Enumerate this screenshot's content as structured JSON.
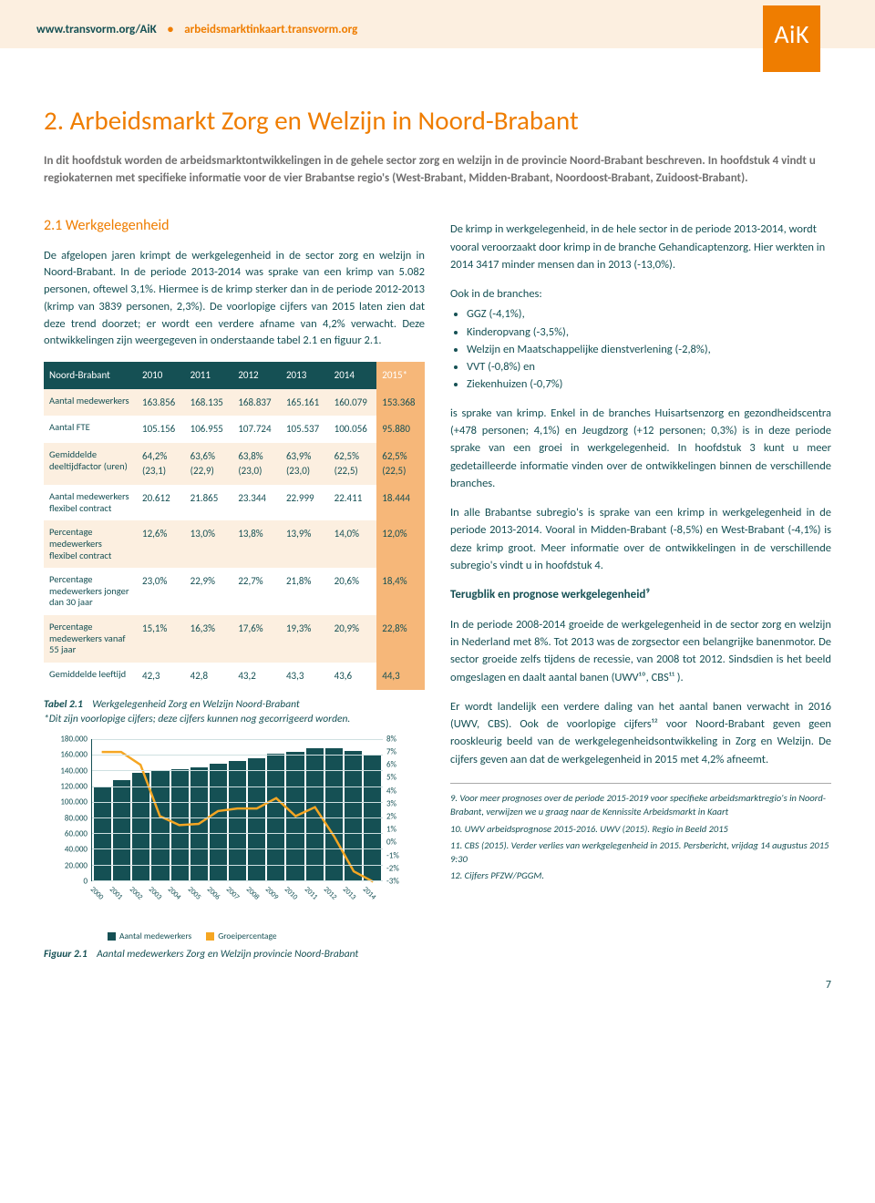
{
  "header": {
    "link1": "www.transvorm.org/AiK",
    "link2": "arbeidsmarktinkaart.transvorm.org",
    "badge": "AiK"
  },
  "title": "2. Arbeidsmarkt Zorg en Welzijn in Noord-Brabant",
  "intro": "In dit hoofdstuk worden de arbeidsmarktontwikkelingen in de gehele sector zorg en welzijn in de provincie Noord-Brabant beschreven. In hoofdstuk 4 vindt u regiokaternen met specifieke informatie voor de vier Brabantse regio's (West-Brabant, Midden-Brabant, Noordoost-Brabant, Zuidoost-Brabant).",
  "left": {
    "sub_h": "2.1  Werkgelegenheid",
    "para": "De afgelopen jaren krimpt de werkgelegenheid in de sector zorg en welzijn in Noord-Brabant. In de periode 2013-2014 was sprake van een krimp van 5.082 personen, oftewel 3,1%. Hiermee is de krimp sterker dan in de periode 2012-2013 (krimp van 3839 personen, 2,3%). De voorlopige cijfers van 2015 laten zien dat deze trend doorzet; er wordt een verdere afname van 4,2% verwacht. Deze ontwikkelingen zijn weergegeven in onderstaande tabel 2.1 en figuur 2.1.",
    "table": {
      "head_label": "Noord-Brabant",
      "years": [
        "2010",
        "2011",
        "2012",
        "2013",
        "2014",
        "2015*"
      ],
      "rows": [
        {
          "label": "Aantal medewerkers",
          "cells": [
            "163.856",
            "168.135",
            "168.837",
            "165.161",
            "160.079",
            "153.368"
          ]
        },
        {
          "label": "Aantal FTE",
          "cells": [
            "105.156",
            "106.955",
            "107.724",
            "105.537",
            "100.056",
            "95.880"
          ]
        },
        {
          "label": "Gemiddelde deeltijdfactor (uren)",
          "cells": [
            "64,2% (23,1)",
            "63,6% (22,9)",
            "63,8% (23,0)",
            "63,9% (23,0)",
            "62,5% (22,5)",
            "62,5% (22,5)"
          ]
        },
        {
          "label": "Aantal medewerkers flexibel contract",
          "cells": [
            "20.612",
            "21.865",
            "23.344",
            "22.999",
            "22.411",
            "18.444"
          ]
        },
        {
          "label": "Percentage medewerkers flexibel contract",
          "cells": [
            "12,6%",
            "13,0%",
            "13,8%",
            "13,9%",
            "14,0%",
            "12,0%"
          ]
        },
        {
          "label": "Percentage medewerkers jonger dan 30 jaar",
          "cells": [
            "23,0%",
            "22,9%",
            "22,7%",
            "21,8%",
            "20,6%",
            "18,4%"
          ]
        },
        {
          "label": "Percentage medewerkers vanaf 55 jaar",
          "cells": [
            "15,1%",
            "16,3%",
            "17,6%",
            "19,3%",
            "20,9%",
            "22,8%"
          ]
        },
        {
          "label": "Gemiddelde leeftijd",
          "cells": [
            "42,3",
            "42,8",
            "43,2",
            "43,3",
            "43,6",
            "44,3"
          ]
        }
      ]
    },
    "tcaption_a": "Tabel 2.1",
    "tcaption_b": "Werkgelegenheid Zorg en Welzijn Noord-Brabant",
    "tcaption_c": "*Dit zijn voorlopige cijfers; deze cijfers kunnen nog gecorrigeerd worden.",
    "chart": {
      "type": "bar+line",
      "categories": [
        "2000",
        "2001",
        "2002",
        "2003",
        "2004",
        "2005",
        "2006",
        "2007",
        "2008",
        "2009",
        "2010",
        "2011",
        "2012",
        "2013",
        "2014"
      ],
      "bar_values": [
        120000,
        128000,
        137000,
        140000,
        142000,
        144000,
        148000,
        152000,
        156000,
        161000,
        163856,
        168135,
        168837,
        165161,
        160079
      ],
      "line_values_pct": [
        7,
        7,
        6,
        2,
        1.3,
        1.4,
        2.4,
        2.6,
        2.6,
        3.4,
        2.0,
        2.7,
        0.4,
        -2.3,
        -3.1
      ],
      "y_left_max": 180000,
      "y_left_step": 20000,
      "y_right_max": 8,
      "y_right_min": -3,
      "y_right_step": 1,
      "bar_color": "#155054",
      "line_color": "#f5a623",
      "grid_color": "#cfe0e1",
      "legend_bar": "Aantal medewerkers",
      "legend_line": "Groeipercentage"
    },
    "fcaption_a": "Figuur 2.1",
    "fcaption_b": "Aantal medewerkers Zorg en Welzijn provincie Noord-Brabant"
  },
  "right": {
    "p1": "De krimp in werkgelegenheid, in de hele sector in de periode 2013-2014, wordt vooral veroorzaakt door krimp in de branche Gehandicaptenzorg. Hier werkten in 2014 3417 minder mensen dan in 2013 (-13,0%).",
    "p2": "Ook in de branches:",
    "bullets": [
      "GGZ (-4,1%),",
      "Kinderopvang (-3,5%),",
      "Welzijn en Maatschappelijke dienstverlening (-2,8%),",
      "VVT (-0,8%) en",
      "Ziekenhuizen (-0,7%)"
    ],
    "p3": "is sprake van krimp. Enkel in de branches Huisartsenzorg en gezondheidscentra (+478 personen; 4,1%) en Jeugdzorg (+12 personen; 0,3%) is in deze periode sprake van een groei in werkgelegenheid. In hoofdstuk 3 kunt u meer gedetailleerde informatie vinden over de ontwikkelingen binnen de verschillende branches.",
    "p4": "In alle Brabantse subregio's is sprake van een krimp in werkgelegenheid in de periode 2013-2014. Vooral in Midden-Brabant (-8,5%) en West-Brabant (-4,1%) is deze krimp groot. Meer informatie over de ontwikkelingen in de verschillende subregio's vindt u in hoofdstuk 4.",
    "h2": "Terugblik en prognose werkgelegenheid⁹",
    "p5": "In de periode 2008-2014 groeide de werkgelegenheid in de sector zorg en welzijn in Nederland met 8%. Tot 2013 was de zorgsector een belangrijke banenmotor. De sector groeide zelfs tijdens de recessie, van 2008 tot 2012. Sindsdien is het beeld omgeslagen en daalt aantal banen (UWV¹⁰, CBS¹¹ ).",
    "p6": "Er wordt landelijk een verdere daling van het aantal banen verwacht in 2016 (UWV, CBS). Ook de voorlopige cijfers¹² voor Noord-Brabant geven geen rooskleurig beeld van de werkgelegenheidsontwikkeling in Zorg en Welzijn. De cijfers geven aan dat de werkgelegenheid in 2015 met 4,2% afneemt.",
    "footnotes": [
      "9.   Voor meer prognoses over de periode 2015-2019 voor specifieke arbeidsmarktregio's in Noord-Brabant, verwijzen we u graag naar de Kennissite Arbeidsmarkt in Kaart",
      "10. UWV arbeidsprognose 2015-2016. UWV (2015). Regio in Beeld 2015",
      "11. CBS (2015). Verder verlies van werkgelegenheid in 2015. Persbericht, vrijdag 14 augustus 2015 9:30",
      "12. Cijfers PFZW/PGGM."
    ]
  },
  "page_number": "7"
}
